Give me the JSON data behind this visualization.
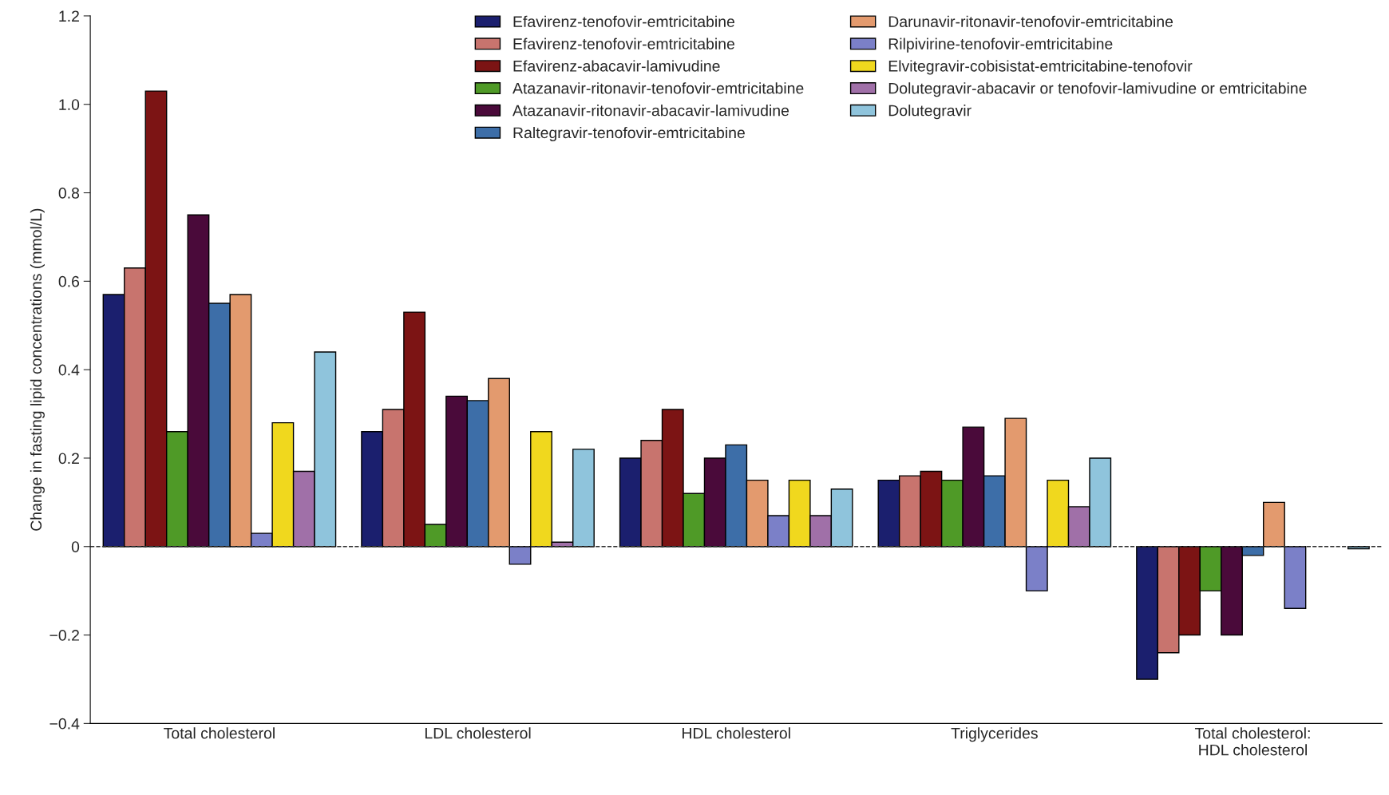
{
  "chart_data": {
    "type": "bar",
    "ylabel": "Change in fasting lipid concentrations (mmol/L)",
    "categories": [
      "Total cholesterol",
      "LDL cholesterol",
      "HDL cholesterol",
      "Triglycerides",
      "Total cholesterol:\nHDL cholesterol"
    ],
    "series": [
      {
        "name": "Efavirenz-tenofovir-emtricitabine",
        "color": "#1b1f6e",
        "values": [
          0.57,
          0.26,
          0.2,
          0.15,
          -0.3
        ]
      },
      {
        "name": "Efavirenz-tenofovir-emtricitabine",
        "color": "#c8746e",
        "values": [
          0.63,
          0.31,
          0.24,
          0.16,
          -0.24
        ]
      },
      {
        "name": "Efavirenz-abacavir-lamivudine",
        "color": "#7c1414",
        "values": [
          1.03,
          0.53,
          0.31,
          0.17,
          -0.2
        ]
      },
      {
        "name": "Atazanavir-ritonavir-tenofovir-emtricitabine",
        "color": "#4f9a27",
        "values": [
          0.26,
          0.05,
          0.12,
          0.15,
          -0.1
        ]
      },
      {
        "name": "Atazanavir-ritonavir-abacavir-lamivudine",
        "color": "#4a0a3a",
        "values": [
          0.75,
          0.34,
          0.2,
          0.27,
          -0.2
        ]
      },
      {
        "name": "Raltegravir-tenofovir-emtricitabine",
        "color": "#3d6ea8",
        "values": [
          0.55,
          0.33,
          0.23,
          0.16,
          -0.02
        ]
      },
      {
        "name": "Darunavir-ritonavir-tenofovir-emtricitabine",
        "color": "#e39a6e",
        "values": [
          0.57,
          0.38,
          0.15,
          0.29,
          0.1
        ]
      },
      {
        "name": "Rilpivirine-tenofovir-emtricitabine",
        "color": "#7b80c8",
        "values": [
          0.03,
          -0.04,
          0.07,
          -0.1,
          -0.14
        ]
      },
      {
        "name": "Elvitegravir-cobisistat-emtricitabine-tenofovir",
        "color": "#f0d81e",
        "values": [
          0.28,
          0.26,
          0.15,
          0.15,
          null
        ]
      },
      {
        "name": "Dolutegravir-abacavir or tenofovir-lamivudine or emtricitabine",
        "color": "#a070a8",
        "values": [
          0.17,
          0.01,
          0.07,
          0.09,
          null
        ]
      },
      {
        "name": "Dolutegravir",
        "color": "#8fc4dc",
        "values": [
          0.44,
          0.22,
          0.13,
          0.2,
          -0.005
        ]
      }
    ],
    "ylim": [
      -0.4,
      1.2
    ],
    "yticks": [
      {
        "value": -0.4,
        "label": "−0.4"
      },
      {
        "value": -0.2,
        "label": "−0.2"
      },
      0,
      {
        "value": 0.2,
        "label": "0.2"
      },
      {
        "value": 0.4,
        "label": "0.4"
      },
      {
        "value": 0.6,
        "label": "0.6"
      },
      {
        "value": 0.8,
        "label": "0.8"
      },
      {
        "value": 1.0,
        "label": "1.0"
      },
      {
        "value": 1.2,
        "label": "1.2"
      }
    ],
    "ref_lines": [
      {
        "axis": "y",
        "value": 0,
        "color": "#333333",
        "line_style": "dashed"
      }
    ],
    "legend": "top",
    "grid": false
  }
}
